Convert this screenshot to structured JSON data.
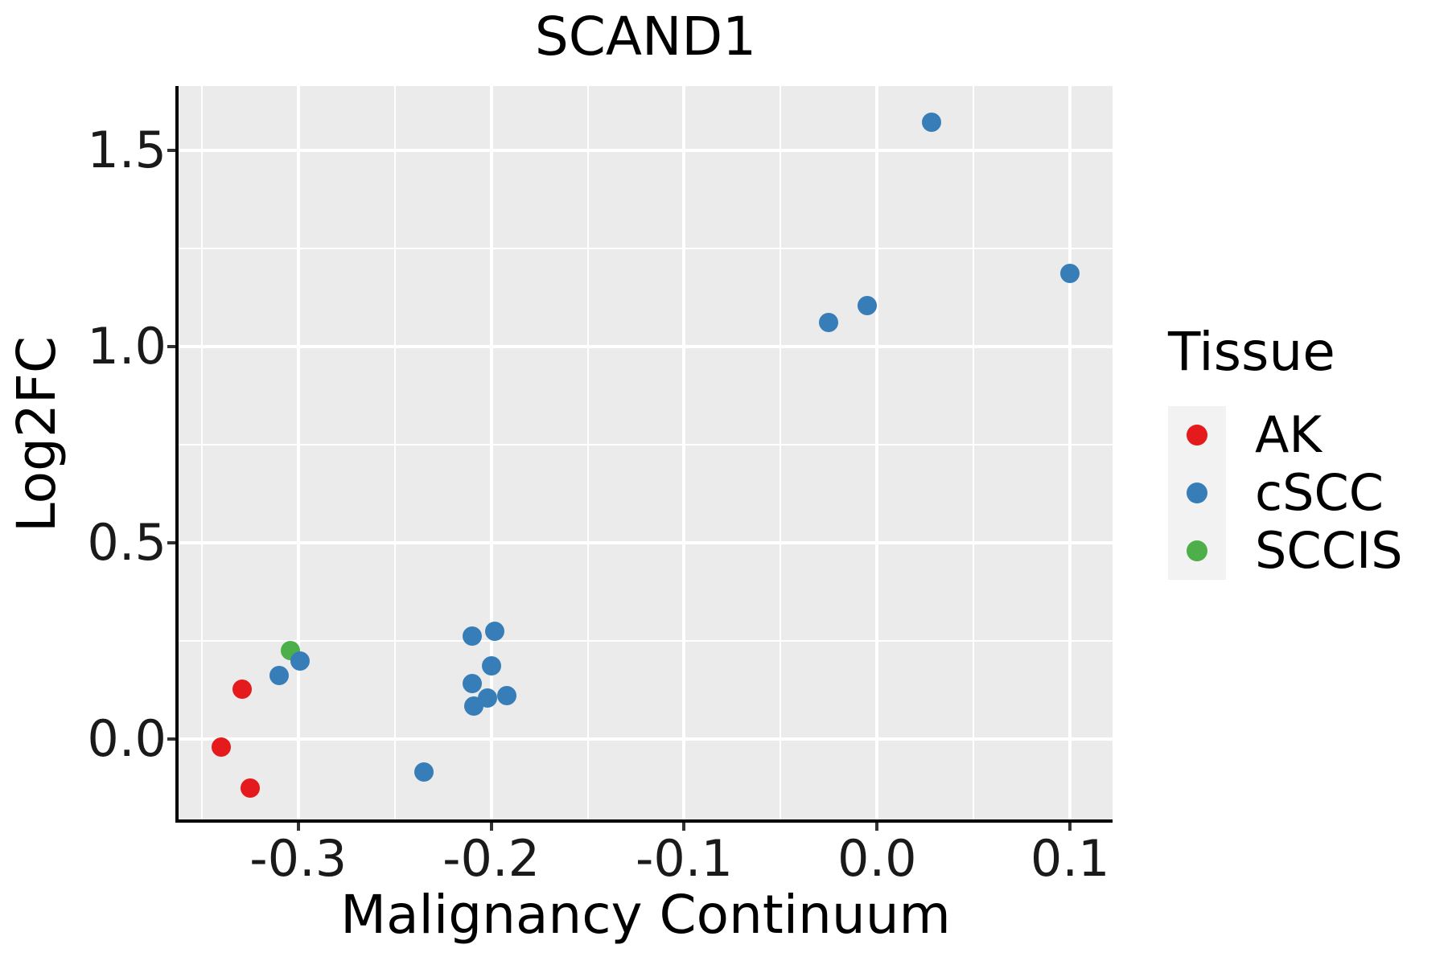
{
  "title": "SCAND1",
  "axes": {
    "x_label": "Malignancy Continuum",
    "y_label": "Log2FC"
  },
  "legend": {
    "title": "Tissue",
    "items": [
      {
        "label": "AK",
        "color": "#E41A1C"
      },
      {
        "label": "cSCC",
        "color": "#377EB8"
      },
      {
        "label": "SCCIS",
        "color": "#4DAF4A"
      }
    ]
  },
  "colors": {
    "panel_background": "#EBEBEB",
    "gridline": "#FFFFFF",
    "legend_key_background": "#F2F2F2",
    "axis_line": "#000000",
    "tick_mark": "#333333",
    "ak_red": "#E41A1C",
    "cscc_blue": "#377EB8",
    "sccis_green": "#4DAF4A"
  },
  "chart_data": {
    "type": "scatter",
    "title": "SCAND1",
    "xlabel": "Malignancy Continuum",
    "ylabel": "Log2FC",
    "xlim": [
      -0.362,
      0.122
    ],
    "ylim": [
      -0.204,
      1.664
    ],
    "x_ticks": [
      -0.3,
      -0.2,
      -0.1,
      0.0,
      0.1
    ],
    "x_tick_labels": [
      "-0.3",
      "-0.2",
      "-0.1",
      "0.0",
      "0.1"
    ],
    "x_minor_ticks": [
      -0.35,
      -0.25,
      -0.15,
      -0.05,
      0.05
    ],
    "y_ticks": [
      0.0,
      0.5,
      1.0,
      1.5
    ],
    "y_tick_labels": [
      "0.0",
      "0.5",
      "1.0",
      "1.5"
    ],
    "y_minor_ticks": [
      0.25,
      0.75,
      1.25
    ],
    "grid": "white major+minor gridlines on gray panel",
    "legend_position": "right",
    "series": [
      {
        "name": "AK",
        "color": "#E41A1C",
        "points": [
          [
            -0.329,
            0.127
          ],
          [
            -0.34,
            -0.02
          ],
          [
            -0.325,
            -0.125
          ]
        ]
      },
      {
        "name": "cSCC",
        "color": "#377EB8",
        "points": [
          [
            -0.299,
            0.2
          ],
          [
            -0.31,
            0.163
          ],
          [
            -0.21,
            0.263
          ],
          [
            -0.198,
            0.276
          ],
          [
            -0.2,
            0.188
          ],
          [
            -0.21,
            0.143
          ],
          [
            -0.202,
            0.106
          ],
          [
            -0.192,
            0.112
          ],
          [
            -0.209,
            0.084
          ],
          [
            -0.235,
            -0.084
          ],
          [
            -0.025,
            1.061
          ],
          [
            -0.005,
            1.104
          ],
          [
            0.028,
            1.571
          ],
          [
            0.1,
            1.186
          ]
        ]
      },
      {
        "name": "SCCIS",
        "color": "#4DAF4A",
        "points": [
          [
            -0.304,
            0.227
          ]
        ]
      }
    ]
  }
}
